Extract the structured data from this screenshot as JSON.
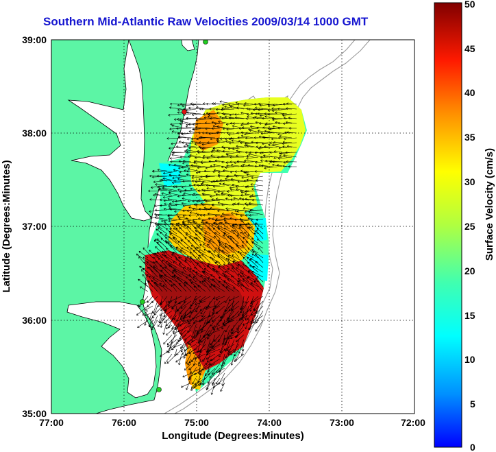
{
  "title": "Southern Mid-Atlantic Raw Velocities 2009/03/14 1000 GMT",
  "x_axis": {
    "label": "Longitude (Degrees:Minutes)",
    "ticks": [
      "77:00",
      "76:00",
      "75:00",
      "74:00",
      "73:00",
      "72:00"
    ]
  },
  "y_axis": {
    "label": "Latitude (Degrees:Minutes)",
    "ticks": [
      "39:00",
      "38:00",
      "37:00",
      "36:00",
      "35:00"
    ]
  },
  "colorbar": {
    "label": "Surface Velocity (cm/s)",
    "ticks": [
      "50",
      "45",
      "40",
      "35",
      "30",
      "25",
      "20",
      "15",
      "10",
      "5",
      "0"
    ],
    "range": [
      0,
      50
    ],
    "colormap": "jet"
  },
  "colors": {
    "land": "#5cf5a5",
    "water": "#ffffff",
    "coast": "#000000",
    "bathymetry": "#9a9a9a",
    "title": "#1515d0",
    "station_green": "#22cc22",
    "station_red": "#dd1111"
  },
  "map": {
    "lon_range": [
      -77,
      -72
    ],
    "lat_range": [
      35,
      39
    ],
    "grid": "dotted"
  }
}
